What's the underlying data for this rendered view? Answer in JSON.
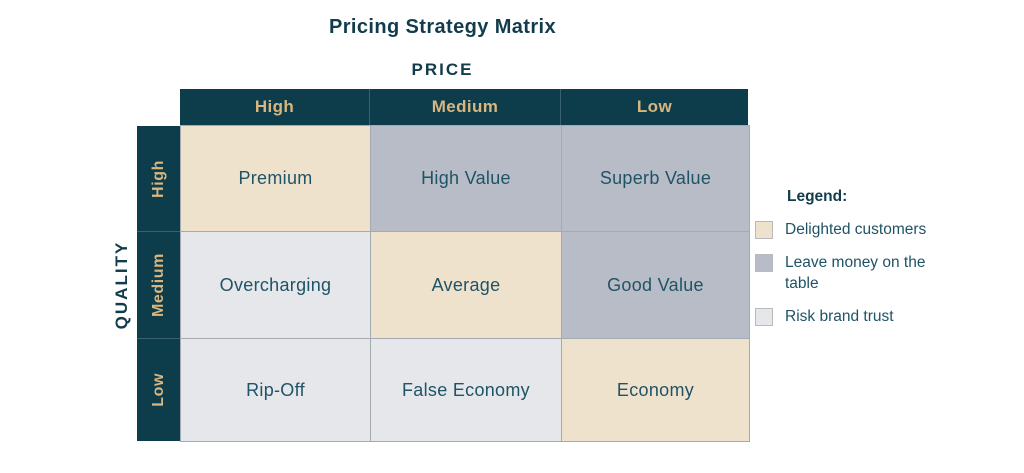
{
  "title": "Pricing Strategy Matrix",
  "matrix": {
    "x_axis_label": "PRICE",
    "y_axis_label": "QUALITY",
    "columns": [
      "High",
      "Medium",
      "Low"
    ],
    "rows": [
      "High",
      "Medium",
      "Low"
    ],
    "cells": [
      [
        {
          "label": "Premium",
          "category": "delighted_customers"
        },
        {
          "label": "High Value",
          "category": "leave_money_on_the_table"
        },
        {
          "label": "Superb Value",
          "category": "leave_money_on_the_table"
        }
      ],
      [
        {
          "label": "Overcharging",
          "category": "risk_brand_trust"
        },
        {
          "label": "Average",
          "category": "delighted_customers"
        },
        {
          "label": "Good Value",
          "category": "leave_money_on_the_table"
        }
      ],
      [
        {
          "label": "Rip-Off",
          "category": "risk_brand_trust"
        },
        {
          "label": "False Economy",
          "category": "risk_brand_trust"
        },
        {
          "label": "Economy",
          "category": "delighted_customers"
        }
      ]
    ]
  },
  "legend": {
    "title": "Legend:",
    "items": [
      {
        "label": "Delighted customers",
        "color": "#efe2cd",
        "category": "delighted_customers"
      },
      {
        "label": "Leave money on the table",
        "color": "#b8bcc6",
        "category": "leave_money_on_the_table"
      },
      {
        "label": "Risk brand trust",
        "color": "#e5e7ea",
        "category": "risk_brand_trust"
      }
    ]
  },
  "colors": {
    "header_background": "#0d3c4b",
    "header_text": "#d9b67f",
    "cell_text": "#1f5366",
    "title_text": "#123c4c",
    "gridline": "#a4aab2",
    "categories": {
      "delighted_customers": "#efe2cd",
      "leave_money_on_the_table": "#b8bcc6",
      "risk_brand_trust": "#e5e7ea"
    }
  }
}
